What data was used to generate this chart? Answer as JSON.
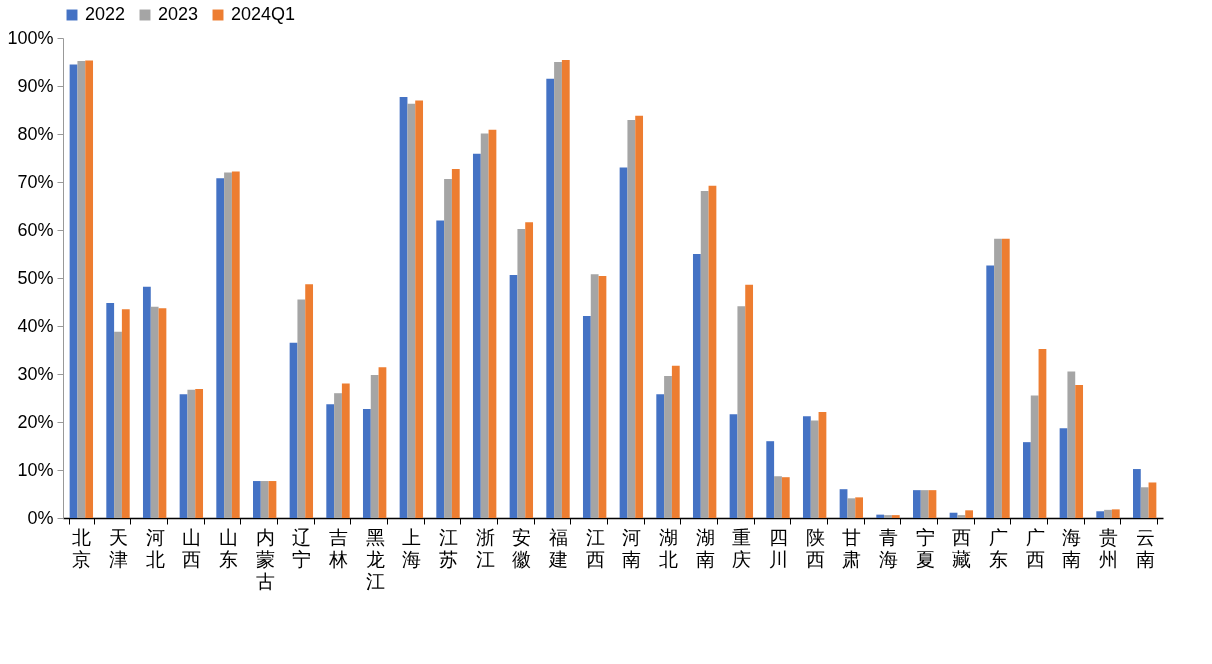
{
  "chart_data": {
    "type": "bar",
    "categories": [
      "北京",
      "天津",
      "河北",
      "山西",
      "山东",
      "内蒙古",
      "辽宁",
      "吉林",
      "黑龙江",
      "上海",
      "江苏",
      "浙江",
      "安徽",
      "福建",
      "江西",
      "河南",
      "湖北",
      "湖南",
      "重庆",
      "四川",
      "陕西",
      "甘肃",
      "青海",
      "宁夏",
      "西藏",
      "广东",
      "广西",
      "海南",
      "贵州",
      "云南"
    ],
    "series": [
      {
        "name": "2022",
        "color": "#4472c4",
        "values": [
          94.5,
          44.8,
          48.2,
          25.8,
          70.8,
          7.7,
          36.5,
          23.7,
          22.7,
          87.7,
          62.0,
          75.9,
          50.6,
          91.5,
          42.1,
          73.0,
          25.8,
          55.0,
          21.6,
          16.0,
          21.2,
          6.0,
          0.7,
          5.8,
          1.1,
          52.6,
          15.8,
          18.7,
          1.4,
          10.2
        ]
      },
      {
        "name": "2023",
        "color": "#a5a5a5",
        "values": [
          95.2,
          38.8,
          44.0,
          26.7,
          72.0,
          7.7,
          45.5,
          26.0,
          29.8,
          86.3,
          70.6,
          80.1,
          60.2,
          95.0,
          50.8,
          82.9,
          29.6,
          68.1,
          44.1,
          8.7,
          20.3,
          4.1,
          0.6,
          5.8,
          0.6,
          58.2,
          25.5,
          30.5,
          1.7,
          6.4
        ]
      },
      {
        "name": "2024Q1",
        "color": "#ed7d31",
        "values": [
          95.3,
          43.5,
          43.7,
          26.9,
          72.2,
          7.7,
          48.7,
          28.0,
          31.4,
          87.0,
          72.7,
          80.9,
          61.6,
          95.4,
          50.4,
          83.8,
          31.7,
          69.2,
          48.6,
          8.5,
          22.1,
          4.3,
          0.6,
          5.8,
          1.6,
          58.2,
          35.2,
          27.7,
          1.8,
          7.4
        ]
      }
    ],
    "ylim": [
      0,
      100
    ],
    "yticks": [
      {
        "value": 0,
        "label": "0%"
      },
      {
        "value": 10,
        "label": "10%"
      },
      {
        "value": 20,
        "label": "20%"
      },
      {
        "value": 30,
        "label": "30%"
      },
      {
        "value": 40,
        "label": "40%"
      },
      {
        "value": 50,
        "label": "50%"
      },
      {
        "value": 60,
        "label": "60%"
      },
      {
        "value": 70,
        "label": "70%"
      },
      {
        "value": 80,
        "label": "80%"
      },
      {
        "value": 90,
        "label": "90%"
      },
      {
        "value": 100,
        "label": "100%"
      }
    ],
    "legend": "top"
  }
}
